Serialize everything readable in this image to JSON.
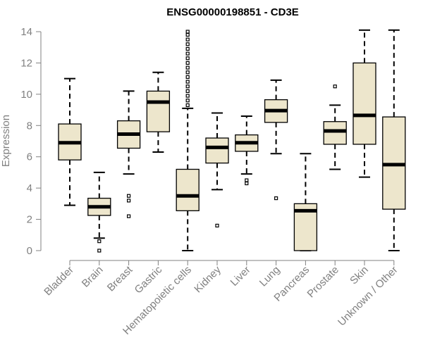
{
  "chart_data": {
    "type": "boxplot",
    "title": "ENSG00000198851 - CD3E",
    "xlabel": "",
    "ylabel": "Expression",
    "ylim": [
      0,
      14
    ],
    "yticks": [
      0,
      2,
      4,
      6,
      8,
      10,
      12,
      14
    ],
    "categories": [
      "Bladder",
      "Brain",
      "Breast",
      "Gastric",
      "Hematopoietic cells",
      "Kidney",
      "Liver",
      "Lung",
      "Pancreas",
      "Prostate",
      "Skin",
      "Unknown / Other"
    ],
    "boxes": [
      {
        "name": "Bladder",
        "whisker_low": 2.9,
        "q1": 5.8,
        "median": 6.9,
        "q3": 8.1,
        "whisker_high": 11.0,
        "outliers": []
      },
      {
        "name": "Brain",
        "whisker_low": 0.8,
        "q1": 2.25,
        "median": 2.8,
        "q3": 3.35,
        "whisker_high": 5.0,
        "outliers": [
          0.0,
          0.6
        ]
      },
      {
        "name": "Breast",
        "whisker_low": 4.9,
        "q1": 6.55,
        "median": 7.45,
        "q3": 8.3,
        "whisker_high": 10.2,
        "outliers": [
          2.2,
          3.2,
          3.5
        ]
      },
      {
        "name": "Gastric",
        "whisker_low": 6.3,
        "q1": 7.6,
        "median": 9.5,
        "q3": 10.2,
        "whisker_high": 11.4,
        "outliers": []
      },
      {
        "name": "Hematopoietic cells",
        "whisker_low": 0.0,
        "q1": 2.55,
        "median": 3.5,
        "q3": 5.2,
        "whisker_high": 9.1,
        "outliers": [
          9.3,
          9.6,
          9.9,
          10.2,
          10.5,
          10.8,
          11.1,
          11.4,
          11.7,
          12.0,
          12.3,
          12.6,
          12.9,
          13.2,
          13.5,
          13.8,
          14.0
        ]
      },
      {
        "name": "Kidney",
        "whisker_low": 3.9,
        "q1": 5.6,
        "median": 6.6,
        "q3": 7.2,
        "whisker_high": 8.8,
        "outliers": [
          1.6
        ]
      },
      {
        "name": "Liver",
        "whisker_low": 4.9,
        "q1": 6.35,
        "median": 6.9,
        "q3": 7.4,
        "whisker_high": 8.6,
        "outliers": [
          4.3,
          4.5
        ]
      },
      {
        "name": "Lung",
        "whisker_low": 6.2,
        "q1": 8.2,
        "median": 8.95,
        "q3": 9.65,
        "whisker_high": 10.9,
        "outliers": [
          3.35
        ]
      },
      {
        "name": "Pancreas",
        "whisker_low": 0.0,
        "q1": 0.0,
        "median": 2.55,
        "q3": 3.0,
        "whisker_high": 6.2,
        "outliers": []
      },
      {
        "name": "Prostate",
        "whisker_low": 5.2,
        "q1": 6.8,
        "median": 7.65,
        "q3": 8.25,
        "whisker_high": 9.3,
        "outliers": [
          10.5
        ]
      },
      {
        "name": "Skin",
        "whisker_low": 4.7,
        "q1": 6.8,
        "median": 8.65,
        "q3": 12.0,
        "whisker_high": 14.1,
        "outliers": []
      },
      {
        "name": "Unknown / Other",
        "whisker_low": 0.0,
        "q1": 2.65,
        "median": 5.5,
        "q3": 8.55,
        "whisker_high": 14.1,
        "outliers": []
      }
    ],
    "colors": {
      "box_fill": "#EDE6CC",
      "box_stroke": "#000000",
      "axis": "#808080",
      "text": "#808080",
      "title": "#000000"
    }
  }
}
